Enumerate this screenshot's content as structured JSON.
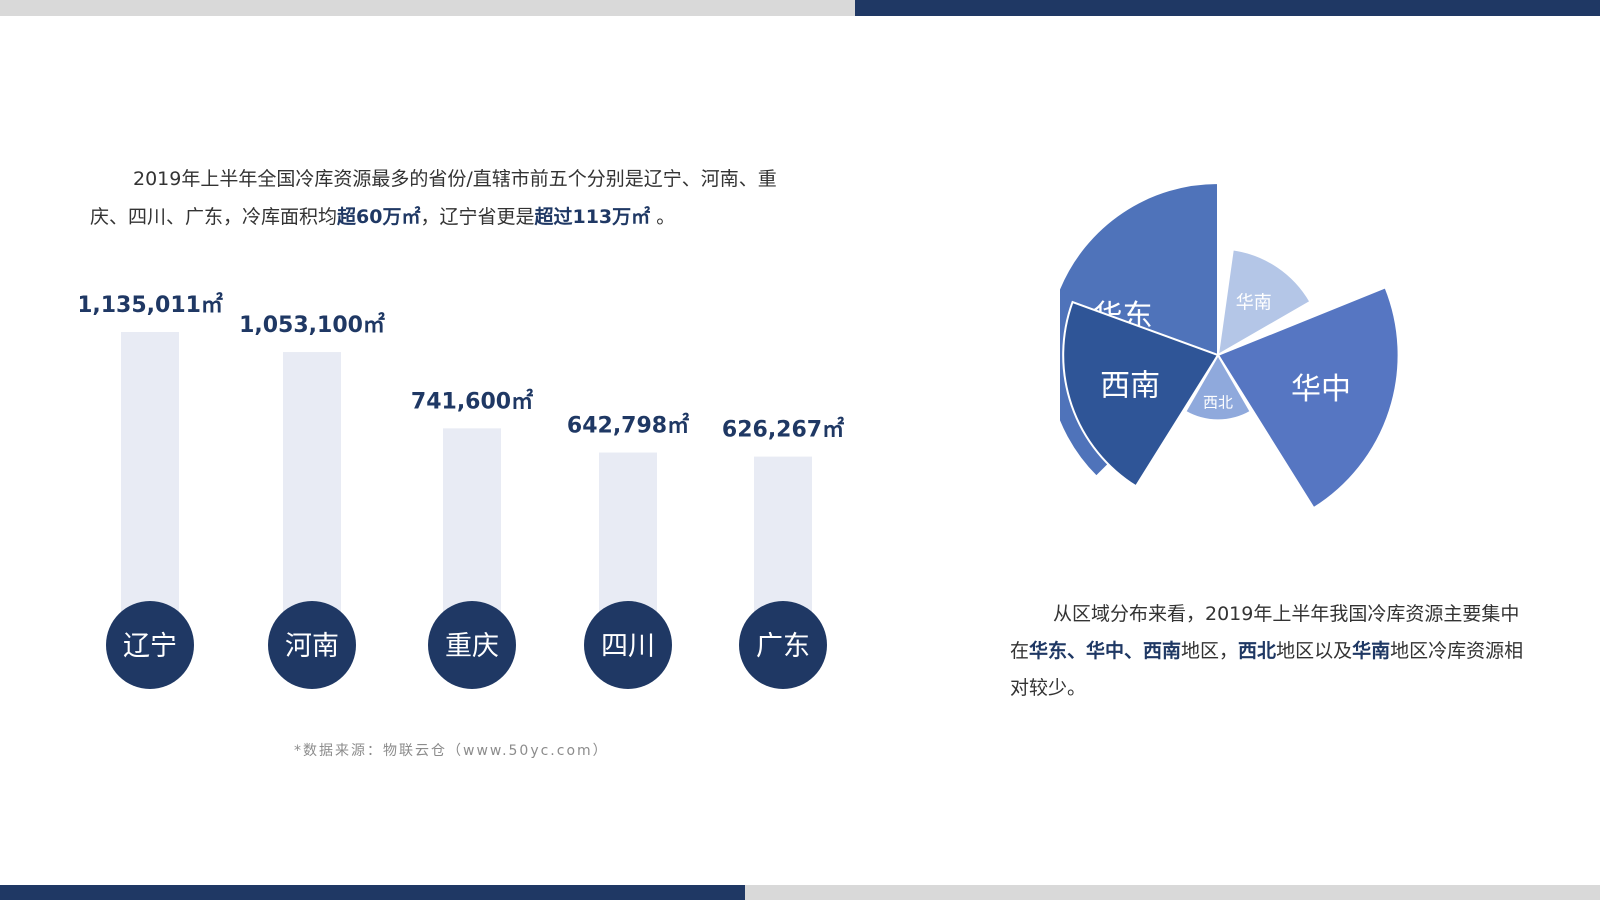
{
  "intro": {
    "line_prefix": "2019年上半年全国冷库资源最多的省份/直辖市前五个分别是辽宁、河南、重庆、四川、广东，冷库面积均",
    "bold1": "超60万㎡",
    "mid": "，辽宁省更是",
    "bold2": "超过113万㎡",
    "suffix": " 。"
  },
  "source_note": "*数据来源：物联云仓（www.50yc.com）",
  "region_text": {
    "p1": "从区域分布来看，2019年上半年我国冷库资源主要集中在",
    "b1": "华东、华中、西南",
    "p2": "地区，",
    "b2": "西北",
    "p3": "地区以及",
    "b3": "华南",
    "p4": "地区冷库资源相对较少。"
  },
  "chart_data": [
    {
      "type": "bar",
      "categories": [
        "辽宁",
        "河南",
        "重庆",
        "四川",
        "广东"
      ],
      "values": [
        1135011,
        1053100,
        741600,
        642798,
        626267
      ],
      "value_labels": [
        "1,135,011㎡",
        "1,053,100㎡",
        "741,600㎡",
        "642,798㎡",
        "626,267㎡"
      ],
      "colors": {
        "bar": "#e8ebf4",
        "circle": "#1f3864",
        "label": "#1f3864"
      }
    },
    {
      "type": "pie",
      "categories": [
        "华东",
        "华南",
        "华中",
        "西北",
        "西南"
      ],
      "relative_radius": [
        1.0,
        0.62,
        1.05,
        0.38,
        0.9
      ],
      "colors": [
        "#4f73ba",
        "#b4c6e7",
        "#5676c2",
        "#8fa9dc",
        "#2f5597"
      ]
    }
  ]
}
